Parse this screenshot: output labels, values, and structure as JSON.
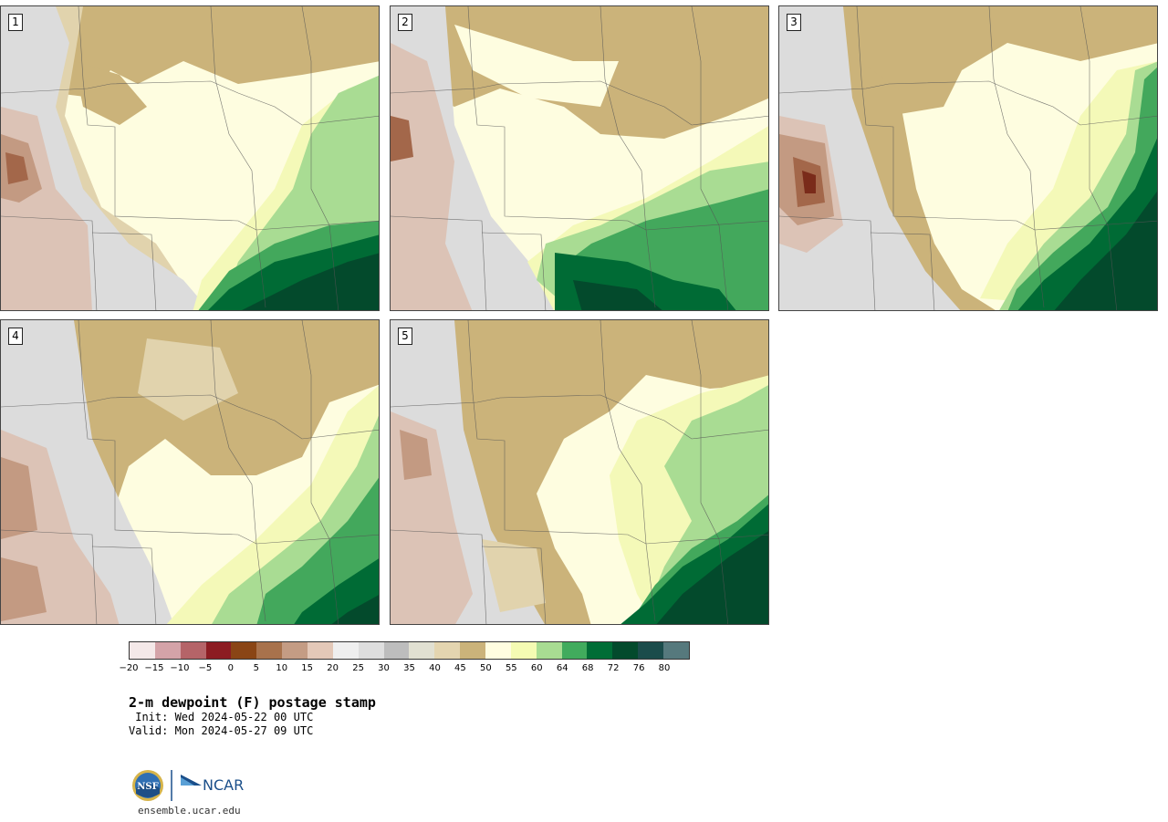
{
  "panels": [
    {
      "label": "1"
    },
    {
      "label": "2"
    },
    {
      "label": "3"
    },
    {
      "label": "4"
    },
    {
      "label": "5"
    }
  ],
  "colorbar": {
    "colors": [
      "#f4e8e8",
      "#d4a3a8",
      "#b56468",
      "#8c1c22",
      "#8a4515",
      "#a8724c",
      "#c49c84",
      "#e3c8b8",
      "#efefef",
      "#dedede",
      "#bdbdbd",
      "#e1e0d2",
      "#e4d5b0",
      "#cbb37a",
      "#fffde0",
      "#f5fbb3",
      "#a8dc92",
      "#41ab5d",
      "#006d36",
      "#034a2c",
      "#1b4c4b",
      "#56797d"
    ],
    "ticks": [
      "−20",
      "−15",
      "−10",
      "−5",
      "0",
      "5",
      "10",
      "15",
      "20",
      "25",
      "30",
      "35",
      "40",
      "45",
      "50",
      "55",
      "60",
      "64",
      "68",
      "72",
      "76",
      "80"
    ]
  },
  "title": "2-m dewpoint (F) postage stamp",
  "init": " Init: Wed 2024-05-22 00 UTC",
  "valid": "Valid: Mon 2024-05-27 09 UTC",
  "footer": {
    "nsf_logo_text": "NSF",
    "ncar_logo_text": "NCAR",
    "url": "ensemble.ucar.edu"
  }
}
